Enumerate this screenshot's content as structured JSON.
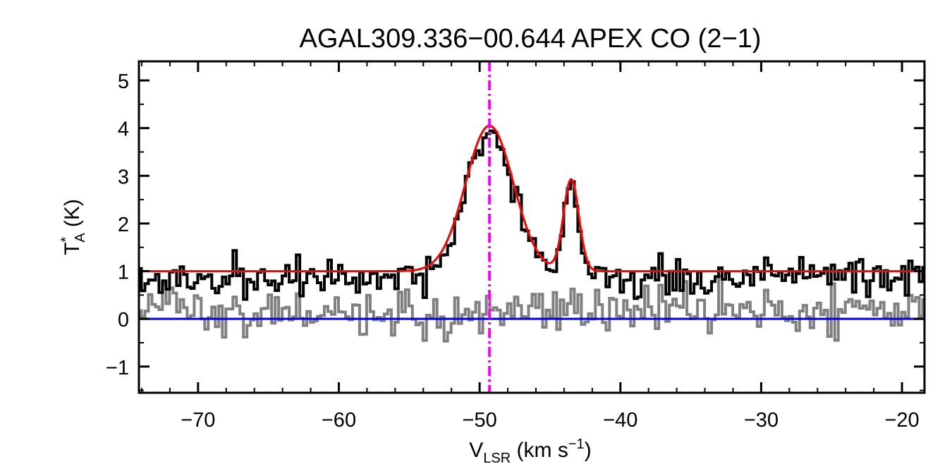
{
  "chart_data": {
    "type": "line",
    "title": "AGAL309.336−00.644  APEX CO (2−1)",
    "xlabel": {
      "main": "V",
      "sub": "LSR",
      "unit": " (km s",
      "sup": "−1",
      "close": ")"
    },
    "ylabel": {
      "main": "T",
      "sup": "*",
      "sub": "A",
      "unit": " (K)"
    },
    "xlim": [
      -74.2,
      -18.4
    ],
    "ylim": [
      -1.55,
      5.4
    ],
    "x_ticks": [
      -70,
      -60,
      -50,
      -40,
      -30,
      -20
    ],
    "x_tick_labels": [
      "−70",
      "−60",
      "−50",
      "−40",
      "−30",
      "−20"
    ],
    "y_ticks": [
      -1,
      0,
      1,
      2,
      3,
      4,
      5
    ],
    "y_tick_labels": [
      "−1",
      "0",
      "1",
      "2",
      "3",
      "4",
      "5"
    ],
    "grid": false,
    "colors": {
      "spectrum": "#000000",
      "residual": "#808080",
      "fit": "#ff0000",
      "baseline": "#0000ff",
      "vlsr_marker": "#ff00ff"
    },
    "vlsr_marker_x": -49.3,
    "baseline_y": 0,
    "fit": {
      "offset": 1.0,
      "components": [
        {
          "amp": 3.05,
          "center": -49.3,
          "sigma": 1.7
        },
        {
          "amp": 1.92,
          "center": -43.5,
          "sigma": 0.55
        }
      ]
    },
    "spectrum_step": 0.25,
    "spectrum_noise": 0.2,
    "residual_noise": 0.22,
    "series": [
      {
        "name": "",
        "values": []
      },
      {
        "name": "",
        "values": []
      }
    ]
  }
}
